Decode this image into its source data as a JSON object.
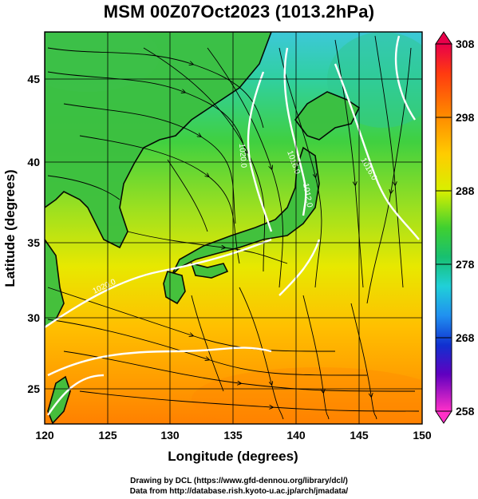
{
  "title": "MSM 00Z07Oct2023 (1013.2hPa)",
  "axes": {
    "xlabel": "Longitude (degrees)",
    "ylabel": "Latitude  (degrees)",
    "x_ticks": [
      "120",
      "125",
      "130",
      "135",
      "140",
      "145",
      "150"
    ],
    "y_ticks": [
      "25",
      "30",
      "35",
      "40",
      "45"
    ]
  },
  "colorbar": {
    "ticks": [
      "308",
      "298",
      "288",
      "278",
      "268",
      "258"
    ],
    "colors": [
      "#e8004a",
      "#ff3a10",
      "#ff7a00",
      "#ffa800",
      "#ffd200",
      "#e8f000",
      "#a8e810",
      "#4cd830",
      "#18c060",
      "#10c8a8",
      "#20c8e8",
      "#30a0f0",
      "#2060e0",
      "#1010c0",
      "#6000c0",
      "#c000c0",
      "#ff30c0"
    ]
  },
  "contour_labels": [
    "1020.0",
    "1016.0",
    "1016.0",
    "1012.0",
    "1020.0",
    "1016.0"
  ],
  "credits": {
    "line1": "Drawing by DCL (https://www.gfd-dennou.org/library/dcl/)",
    "line2": "Data from http://database.rish.kyoto-u.ac.jp/arch/jmadata/"
  },
  "colors": {
    "land_outline": "#000000",
    "isobar": "#ffffff",
    "streamline": "#000000"
  }
}
